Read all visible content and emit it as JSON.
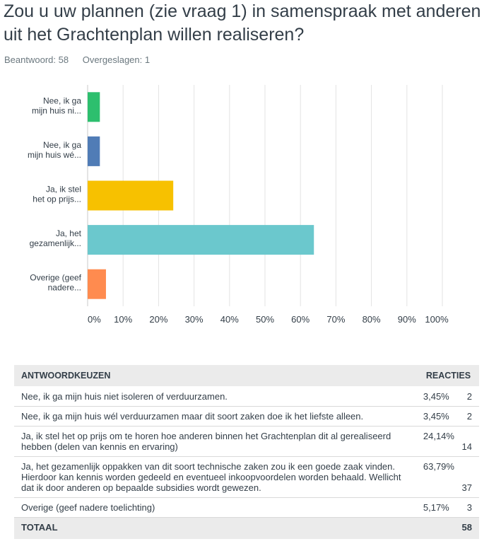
{
  "question": {
    "title": "Zou u uw plannen (zie vraag 1) in samenspraak met anderen uit het Grachtenplan willen realiseren?",
    "answered": "Beantwoord: 58",
    "skipped": "Overgeslagen: 1"
  },
  "chart_data": {
    "type": "bar",
    "orientation": "horizontal",
    "categories": [
      [
        "Nee, ik ga",
        "mijn huis ni..."
      ],
      [
        "Nee, ik ga",
        "mijn huis wé..."
      ],
      [
        "Ja, ik stel",
        "het op prijs..."
      ],
      [
        "Ja, het",
        "gezamenlijk..."
      ],
      [
        "Overige (geef",
        "nadere..."
      ]
    ],
    "values": [
      3.45,
      3.45,
      24.14,
      63.79,
      5.17
    ],
    "colors": [
      "#2dbf6e",
      "#507cb6",
      "#f7c100",
      "#6bc8cd",
      "#ff8b4f"
    ],
    "xlim": [
      0,
      100
    ],
    "xticks": [
      "0%",
      "10%",
      "20%",
      "30%",
      "40%",
      "50%",
      "60%",
      "70%",
      "80%",
      "90%",
      "100%"
    ],
    "grid": true
  },
  "table": {
    "headers": {
      "choice": "ANTWOORDKEUZEN",
      "responses": "REACTIES"
    },
    "rows": [
      {
        "choice": "Nee, ik ga mijn huis niet isoleren of verduurzamen.",
        "pct": "3,45%",
        "count": "2"
      },
      {
        "choice": "Nee, ik ga mijn huis wél verduurzamen maar dit soort zaken doe ik het liefste alleen.",
        "pct": "3,45%",
        "count": "2"
      },
      {
        "choice": "Ja, ik stel het op prijs om te horen hoe anderen binnen het Grachtenplan dit al gerealiseerd hebben (delen van kennis en ervaring)",
        "pct": "24,14%",
        "count": "14"
      },
      {
        "choice": "Ja, het gezamenlijk oppakken van dit soort technische zaken zou ik een goede zaak vinden. Hierdoor kan kennis worden gedeeld en eventueel inkoopvoordelen worden behaald. Wellicht dat ik door anderen op bepaalde subsidies wordt gewezen.",
        "pct": "63,79%",
        "count": "37"
      },
      {
        "choice": "Overige (geef nadere toelichting)",
        "pct": "5,17%",
        "count": "3"
      }
    ],
    "total_label": "TOTAAL",
    "total_value": "58"
  }
}
